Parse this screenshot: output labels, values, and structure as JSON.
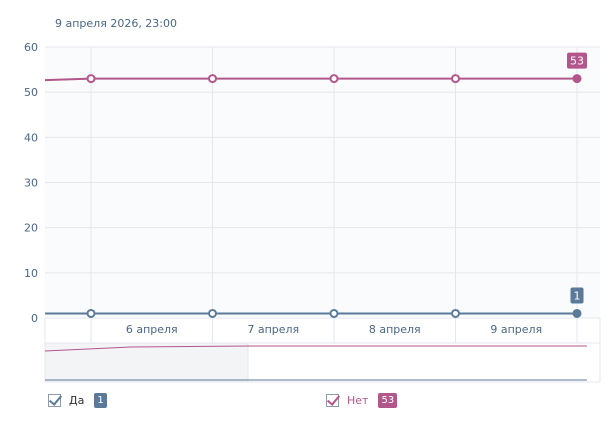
{
  "header": {
    "datetime": "9 апреля 2026, 23:00"
  },
  "colors": {
    "series_yes": "#5b7a9a",
    "series_no": "#b2568c",
    "grid": "#e4e7ec",
    "plot_bg": "#fafbfc"
  },
  "chart_data": {
    "type": "line",
    "x_ticks": [
      "6 апреля",
      "7 апреля",
      "8 апреля",
      "9 апреля"
    ],
    "y_ticks": [
      "0",
      "10",
      "20",
      "30",
      "40",
      "50",
      "60"
    ],
    "ylim": [
      0,
      60
    ],
    "series": [
      {
        "name": "Да",
        "color": "#5b7a9a",
        "values": [
          1,
          1,
          1,
          1,
          1
        ],
        "last_label": "1"
      },
      {
        "name": "Нет",
        "color": "#b2568c",
        "values": [
          53,
          53,
          53,
          53,
          53
        ],
        "last_label": "53"
      }
    ]
  },
  "legend": [
    {
      "label": "Да",
      "value": "1",
      "checked": true
    },
    {
      "label": "Нет",
      "value": "53",
      "checked": true
    }
  ]
}
